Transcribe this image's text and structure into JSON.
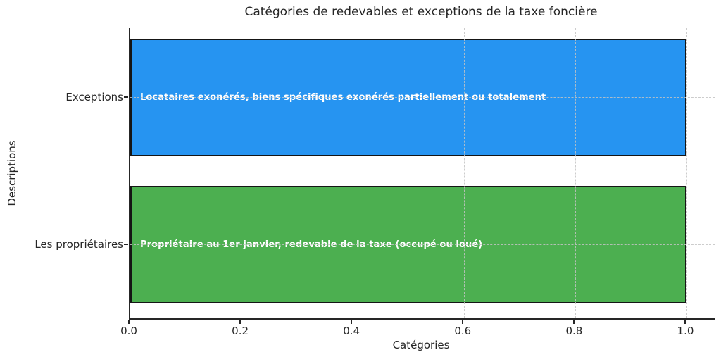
{
  "chart_data": {
    "type": "bar",
    "orientation": "horizontal",
    "title": "Catégories de redevables et exceptions de la taxe foncière",
    "xlabel": "Catégories",
    "ylabel": "Descriptions",
    "categories": [
      "Exceptions",
      "Les propriétaires"
    ],
    "values": [
      1.0,
      1.0
    ],
    "bar_labels": [
      "Locataires exonérés, biens spécifiques exonérés partiellement ou totalement",
      "Propriétaire au 1er janvier, redevable de la taxe (occupé ou loué)"
    ],
    "bar_colors": [
      "#2694f1",
      "#4caf50"
    ],
    "bar_edge_color": "#151515",
    "background_color": "#ffffff",
    "grid": true,
    "grid_style": "dashed",
    "grid_color": "#c3c3c3",
    "xlim": [
      0,
      1.05
    ],
    "xticks": [
      "0.0",
      "0.2",
      "0.4",
      "0.6",
      "0.8",
      "1.0"
    ],
    "xtick_values": [
      0,
      0.2,
      0.4,
      0.6,
      0.8,
      1.0
    ],
    "legend": null
  }
}
